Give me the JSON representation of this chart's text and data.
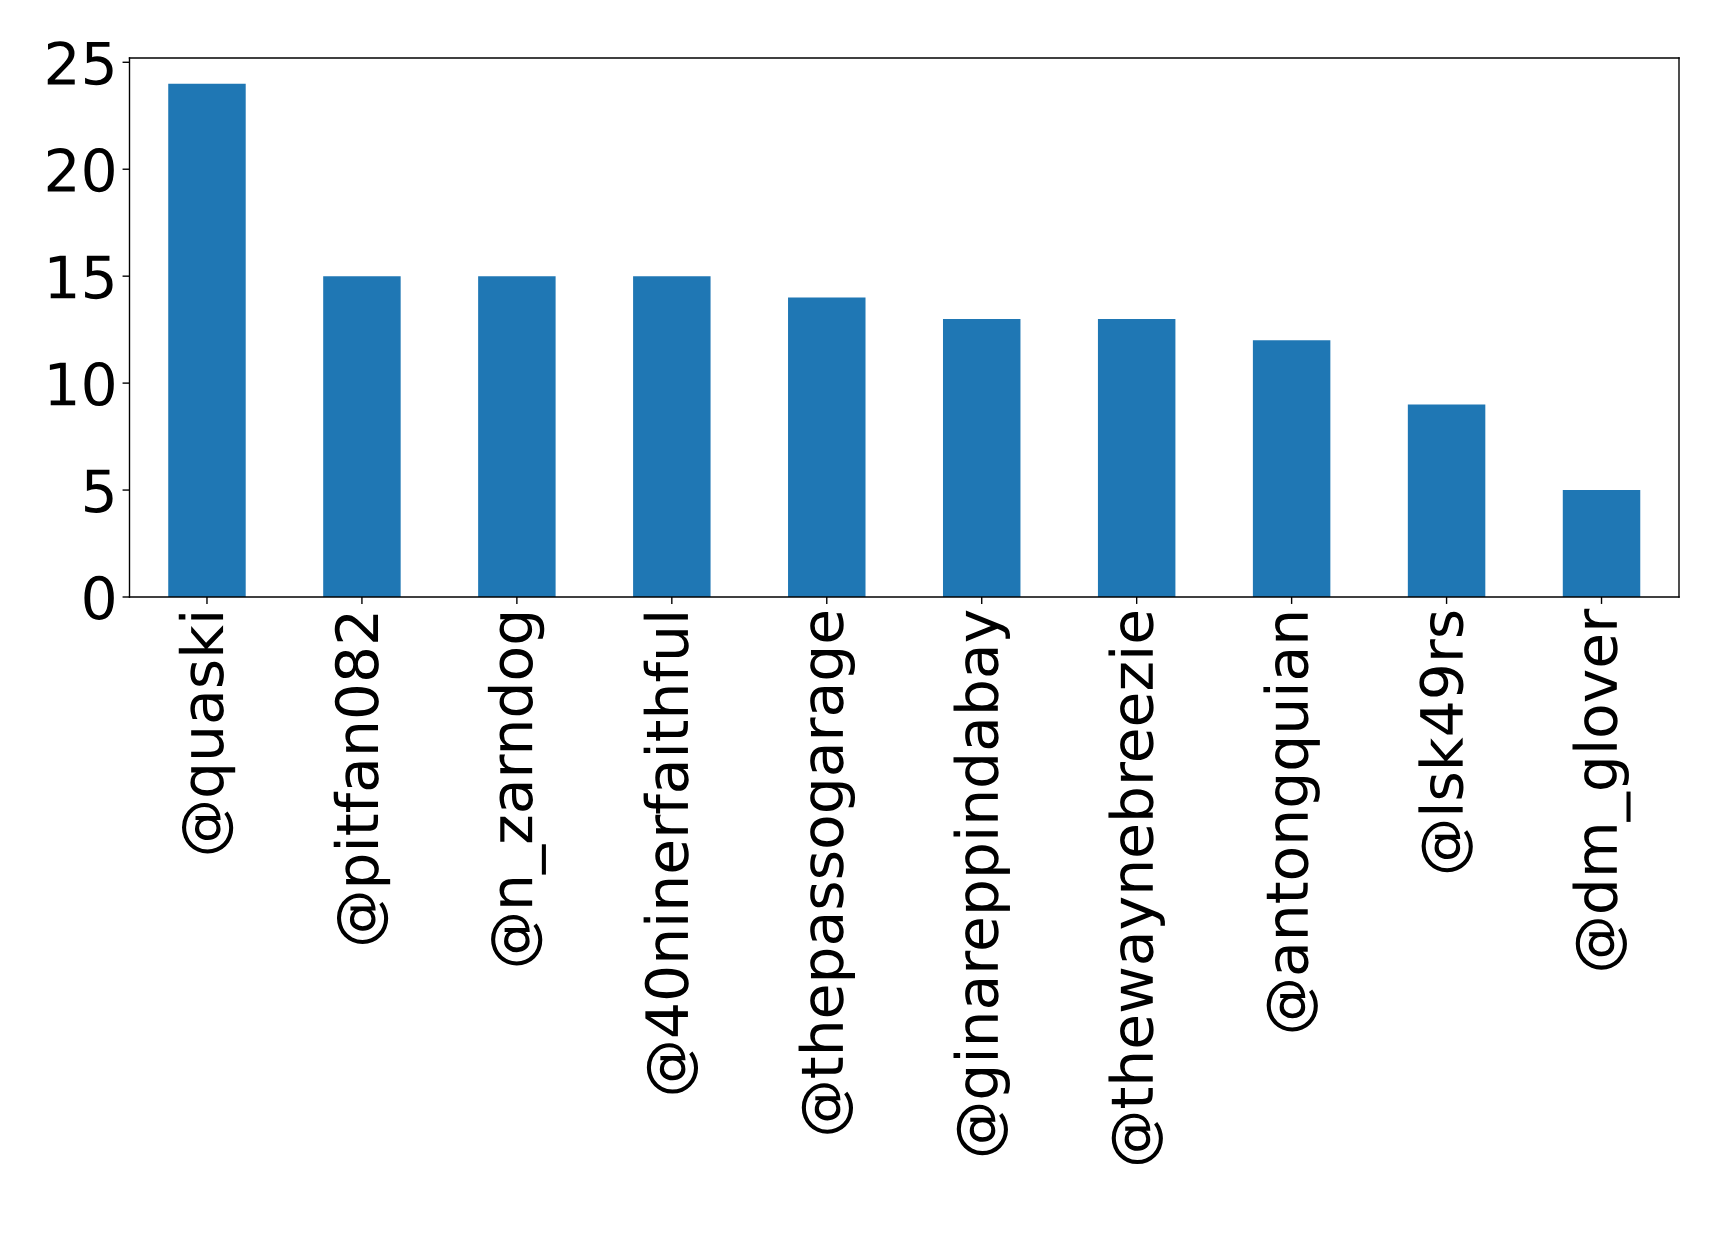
{
  "chart_data": {
    "type": "bar",
    "categories": [
      "@quaski",
      "@pitfan082",
      "@n_zarndog",
      "@40ninerfaithful",
      "@thepassogarage",
      "@ginareppindabay",
      "@thewaynebreezie",
      "@antongquian",
      "@lsk49rs",
      "@dm_glover"
    ],
    "values": [
      24,
      15,
      15,
      15,
      14,
      13,
      13,
      12,
      9,
      5
    ],
    "color": "#1f77b4",
    "ylim": [
      0,
      25.2
    ],
    "yticks": [
      0,
      5,
      10,
      15,
      20,
      25
    ]
  }
}
